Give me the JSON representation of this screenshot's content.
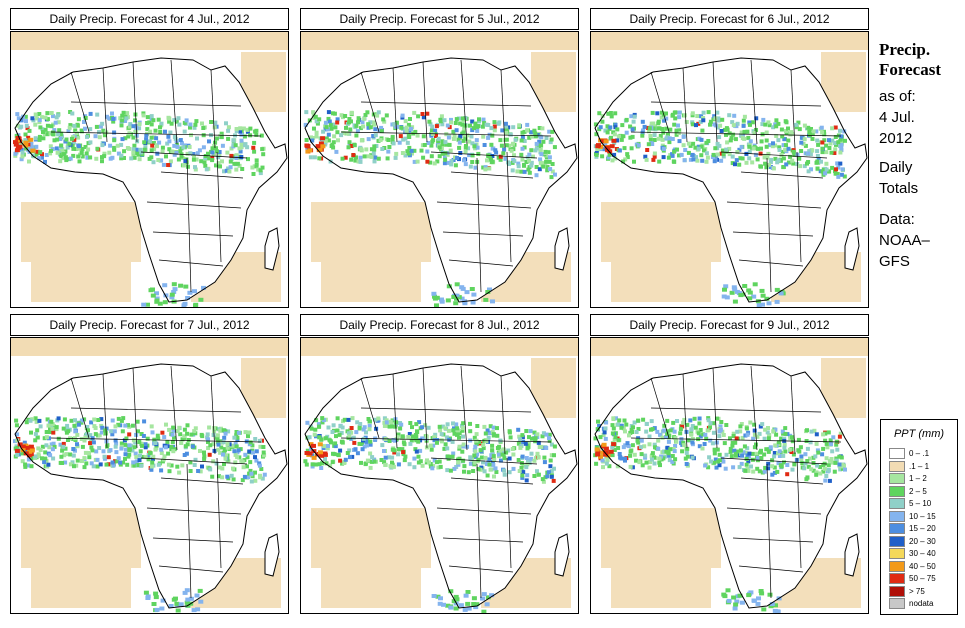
{
  "panels": [
    {
      "title": "Daily Precip. Forecast for  4 Jul., 2012"
    },
    {
      "title": "Daily Precip. Forecast for  5 Jul., 2012"
    },
    {
      "title": "Daily Precip. Forecast for  6 Jul., 2012"
    },
    {
      "title": "Daily Precip. Forecast for  7 Jul., 2012"
    },
    {
      "title": "Daily Precip. Forecast for  8 Jul., 2012"
    },
    {
      "title": "Daily Precip. Forecast for  9 Jul., 2012"
    }
  ],
  "side": {
    "title_line1": "Precip.",
    "title_line2": "Forecast",
    "asof_line1": "as of:",
    "asof_line2": "4 Jul.",
    "asof_line3": "2012",
    "daily_line1": "Daily",
    "daily_line2": "Totals",
    "data_line1": "Data:",
    "data_line2": "NOAA–",
    "data_line3": "GFS"
  },
  "legend": {
    "title": "PPT (mm)",
    "items": [
      {
        "label": "0 – .1",
        "color": "#ffffff"
      },
      {
        "label": ".1 – 1",
        "color": "#f2dcb4"
      },
      {
        "label": "1 – 2",
        "color": "#a6e6a0"
      },
      {
        "label": "2 – 5",
        "color": "#5fd45f"
      },
      {
        "label": "5 – 10",
        "color": "#8fd0c8"
      },
      {
        "label": "10 – 15",
        "color": "#84b4ee"
      },
      {
        "label": "15 – 20",
        "color": "#4d8ee0"
      },
      {
        "label": "20 – 30",
        "color": "#1f5fc8"
      },
      {
        "label": "30 – 40",
        "color": "#f4d85a"
      },
      {
        "label": "40 – 50",
        "color": "#f39a1a"
      },
      {
        "label": "50 – 75",
        "color": "#e02a12"
      },
      {
        "label": "> 75",
        "color": "#b01008"
      },
      {
        "label": "nodata",
        "color": "#c8c8c8"
      }
    ]
  }
}
